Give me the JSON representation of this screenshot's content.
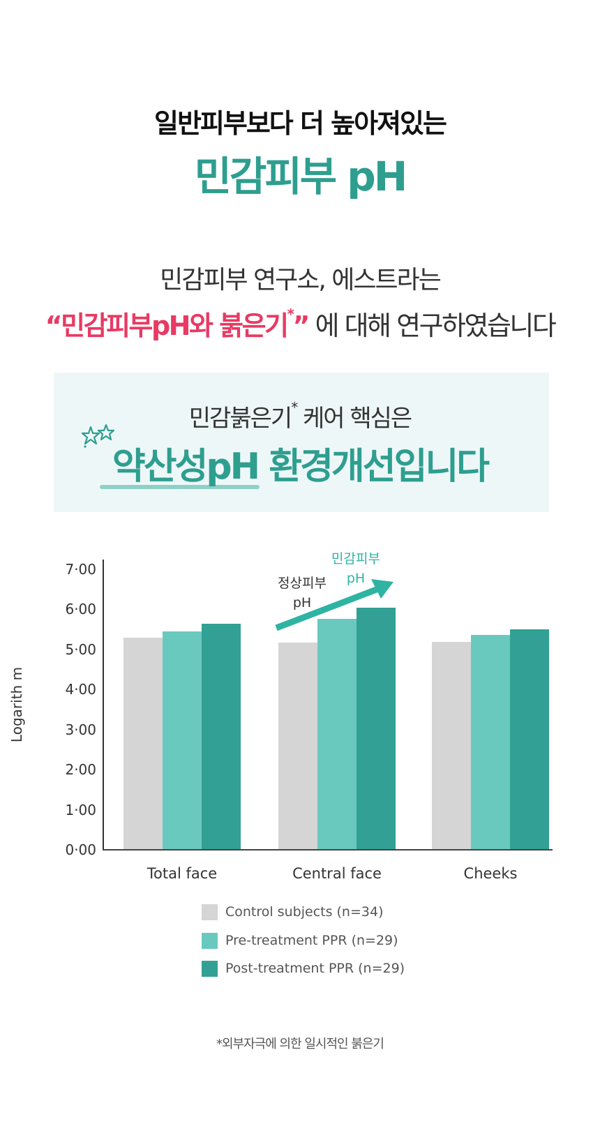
{
  "header": {
    "title_line1": "일반피부보다 더 높아져있는",
    "title_line2": "민감피부 pH"
  },
  "intro": {
    "line1": "민감피부 연구소, 에스트라는",
    "line2_highlight": "“민감피부pH와 붉은기",
    "line2_sup": "*",
    "line2_close": "”",
    "line2_rest": " 에 대해 연구하였습니다"
  },
  "callout": {
    "line1_main": "민감붉은기",
    "line1_sup": "*",
    "line1_rest": " 케어 핵심은",
    "line2": "약산성pH 환경개선입니다",
    "decor_icon": "double-star-icon"
  },
  "colors": {
    "accent_teal": "#2e9e8f",
    "accent_pink": "#e83a63",
    "control": "#d5d5d5",
    "pre_treatment": "#6ac9bf",
    "post_treatment": "#32a094",
    "callout_bg": "#eef7f8"
  },
  "chart_data": {
    "type": "bar",
    "title": "",
    "xlabel": "",
    "ylabel": "Logarith m",
    "ylim": [
      0,
      7
    ],
    "yticks": [
      "0·00",
      "1·00",
      "2·00",
      "3·00",
      "4·00",
      "5·00",
      "6·00",
      "7·00"
    ],
    "grid": false,
    "legend_position": "bottom",
    "categories": [
      "Total face",
      "Central face",
      "Cheeks"
    ],
    "series": [
      {
        "name": "Control subjects (n=34)",
        "values": [
          5.29,
          5.17,
          5.18
        ]
      },
      {
        "name": "Pre-treatment PPR (n=29)",
        "values": [
          5.44,
          5.76,
          5.36
        ]
      },
      {
        "name": "Post-treatment PPR (n=29)",
        "values": [
          5.63,
          6.03,
          5.5
        ]
      }
    ],
    "annotations": [
      {
        "text_line1": "정상피부",
        "text_line2": "pH"
      },
      {
        "text_line1": "민감피부",
        "text_line2": "pH"
      }
    ]
  },
  "footnote": "*외부자극에 의한 일시적인 붉은기"
}
